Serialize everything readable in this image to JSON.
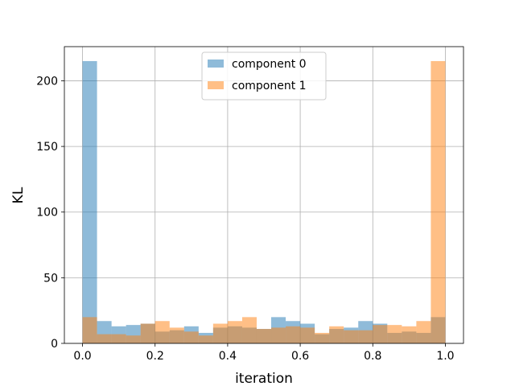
{
  "chart_data": {
    "type": "bar",
    "xlabel": "iteration",
    "ylabel": "KL",
    "xlim": [
      -0.05,
      1.05
    ],
    "ylim": [
      0,
      226
    ],
    "x_ticks": [
      "0.0",
      "0.2",
      "0.4",
      "0.6",
      "0.8",
      "1.0"
    ],
    "x_tick_values": [
      0.0,
      0.2,
      0.4,
      0.6,
      0.8,
      1.0
    ],
    "y_ticks": [
      "0",
      "50",
      "100",
      "150",
      "200"
    ],
    "y_tick_values": [
      0,
      50,
      100,
      150,
      200
    ],
    "grid": true,
    "legend_position": "top-center",
    "bin_edges": [
      0.0,
      0.04,
      0.08,
      0.12,
      0.16,
      0.2,
      0.24,
      0.28,
      0.32,
      0.36,
      0.4,
      0.44,
      0.48,
      0.52,
      0.56,
      0.6,
      0.64,
      0.68,
      0.72,
      0.76,
      0.8,
      0.84,
      0.88,
      0.92,
      0.96,
      1.0
    ],
    "series": [
      {
        "name": "component 0",
        "color": "#1f77b4",
        "values": [
          215,
          17,
          13,
          14,
          15,
          9,
          10,
          13,
          8,
          12,
          13,
          12,
          11,
          20,
          17,
          15,
          7,
          11,
          12,
          17,
          15,
          8,
          9,
          8,
          20
        ]
      },
      {
        "name": "component 1",
        "color": "#ff7f0e",
        "values": [
          20,
          7,
          7,
          6,
          15,
          17,
          12,
          9,
          6,
          15,
          17,
          20,
          11,
          12,
          13,
          12,
          8,
          13,
          10,
          10,
          14,
          14,
          13,
          17,
          215
        ]
      }
    ]
  }
}
